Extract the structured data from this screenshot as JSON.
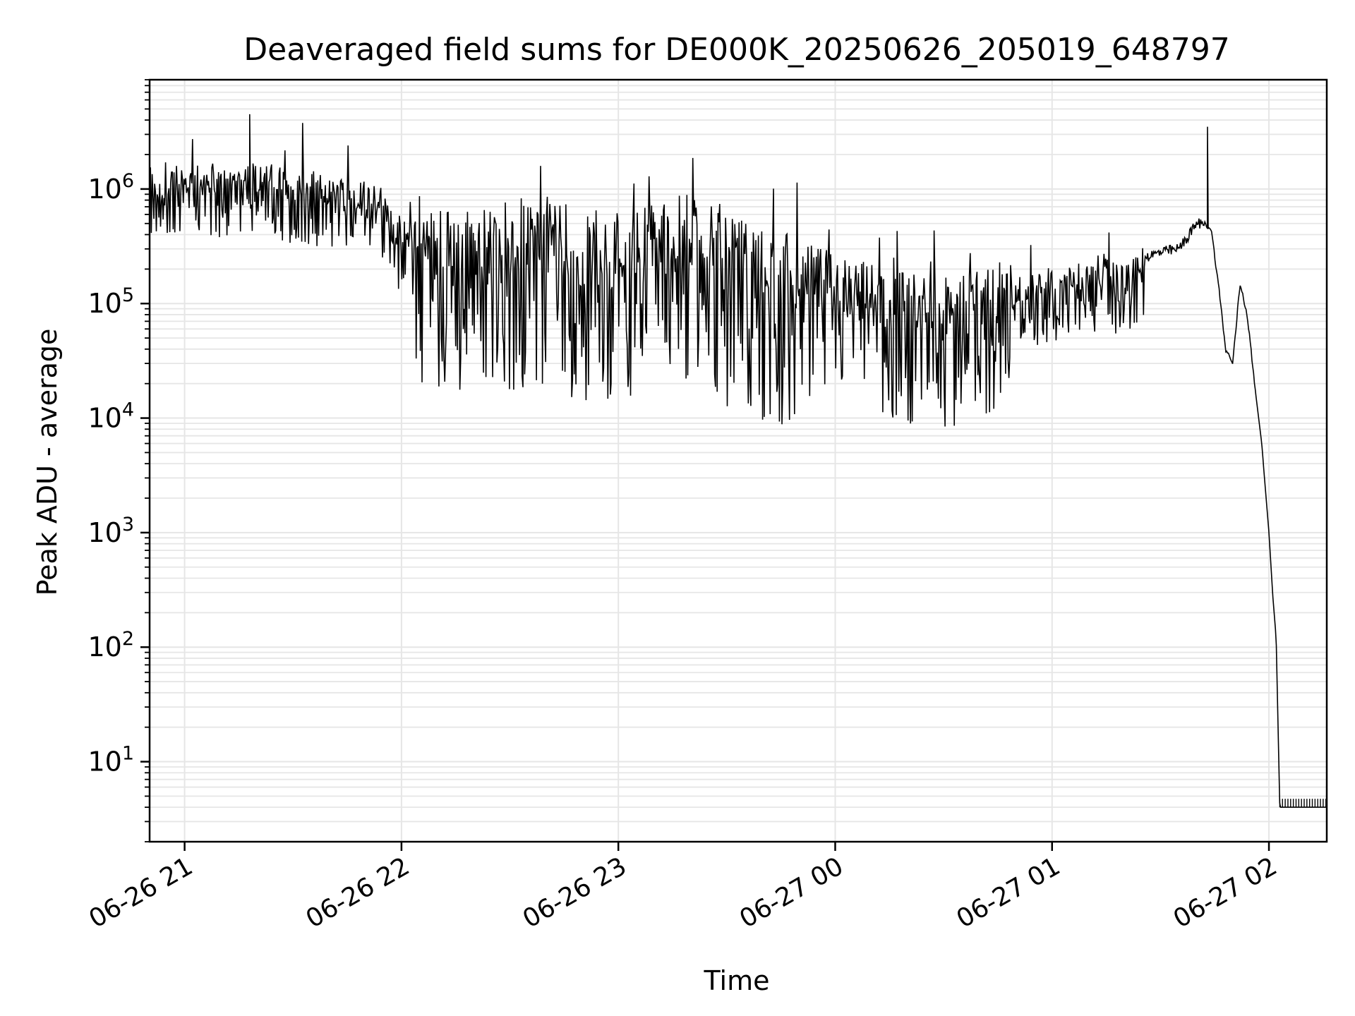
{
  "chart_data": {
    "type": "line",
    "title": "Deaveraged field sums for DE000K_20250626_205019_648797",
    "xlabel": "Time",
    "ylabel": "Peak ADU - average",
    "yscale": "log",
    "grid": true,
    "legend": "none",
    "line_color": "#000000",
    "grid_color": "#e6e6e6",
    "xlim": [
      "2025-06-26 20:50:19",
      "2025-06-27 02:16:00"
    ],
    "ylim": [
      2,
      9000000
    ],
    "x_ticks": [
      {
        "label": "06-26 21",
        "value": "2025-06-26 21:00"
      },
      {
        "label": "06-26 22",
        "value": "2025-06-26 22:00"
      },
      {
        "label": "06-26 23",
        "value": "2025-06-26 23:00"
      },
      {
        "label": "06-27 00",
        "value": "2025-06-27 00:00"
      },
      {
        "label": "06-27 01",
        "value": "2025-06-27 01:00"
      },
      {
        "label": "06-27 02",
        "value": "2025-06-27 02:00"
      }
    ],
    "y_ticks": [
      {
        "base": "10",
        "exp": "1",
        "value": 10
      },
      {
        "base": "10",
        "exp": "2",
        "value": 100
      },
      {
        "base": "10",
        "exp": "3",
        "value": 1000
      },
      {
        "base": "10",
        "exp": "4",
        "value": 10000
      },
      {
        "base": "10",
        "exp": "5",
        "value": 100000
      },
      {
        "base": "10",
        "exp": "6",
        "value": 1000000
      }
    ],
    "series": [
      {
        "x": [
          "2025-06-26 20:50:19",
          "2025-06-26 20:52",
          "2025-06-26 20:53",
          "2025-06-26 20:54",
          "2025-06-26 20:56",
          "2025-06-26 20:58",
          "2025-06-26 21:00",
          "2025-06-26 21:05",
          "2025-06-26 21:08",
          "2025-06-26 21:10",
          "2025-06-26 21:15",
          "2025-06-26 21:20",
          "2025-06-26 21:30",
          "2025-06-26 21:40",
          "2025-06-26 21:50",
          "2025-06-26 21:55",
          "2025-06-26 22:00",
          "2025-06-26 22:10",
          "2025-06-26 22:20",
          "2025-06-26 22:30",
          "2025-06-26 22:38",
          "2025-06-26 22:45",
          "2025-06-26 22:50",
          "2025-06-26 23:00",
          "2025-06-26 23:10",
          "2025-06-26 23:20",
          "2025-06-26 23:25",
          "2025-06-26 23:30",
          "2025-06-26 23:40",
          "2025-06-26 23:50",
          "2025-06-27 00:00",
          "2025-06-27 00:10",
          "2025-06-27 00:20",
          "2025-06-27 00:30",
          "2025-06-27 00:40",
          "2025-06-27 00:50",
          "2025-06-27 01:00",
          "2025-06-27 01:10",
          "2025-06-27 01:15",
          "2025-06-27 01:20",
          "2025-06-27 01:25",
          "2025-06-27 01:30",
          "2025-06-27 01:35",
          "2025-06-27 01:38",
          "2025-06-27 01:40",
          "2025-06-27 01:42",
          "2025-06-27 01:44",
          "2025-06-27 01:46",
          "2025-06-27 01:48",
          "2025-06-27 01:50",
          "2025-06-27 01:52",
          "2025-06-27 01:54",
          "2025-06-27 01:56",
          "2025-06-27 01:58",
          "2025-06-27 02:00",
          "2025-06-27 02:01",
          "2025-06-27 02:02",
          "2025-06-27 02:03",
          "2025-06-27 02:16"
        ],
        "y": [
          1500000,
          800000,
          1200000,
          700000,
          1000000,
          1300000,
          1100000,
          1200000,
          1300000,
          1100000,
          1200000,
          1300000,
          1100000,
          1000000,
          900000,
          800000,
          400000,
          300000,
          300000,
          350000,
          400000,
          350000,
          300000,
          300000,
          350000,
          400000,
          500000,
          250000,
          200000,
          180000,
          150000,
          120000,
          100000,
          90000,
          110000,
          130000,
          150000,
          180000,
          200000,
          150000,
          250000,
          280000,
          300000,
          400000,
          500000,
          500000,
          450000,
          150000,
          40000,
          30000,
          150000,
          80000,
          20000,
          6000,
          1000,
          300,
          120,
          4,
          4
        ]
      }
    ],
    "annotations": [
      {
        "type": "peak",
        "x": "2025-06-26 21:18",
        "y": 4500000
      },
      {
        "type": "peak",
        "x": "2025-06-27 01:43",
        "y": 3500000
      },
      {
        "type": "dip",
        "x": "2025-06-26 22:39",
        "y": 20000
      },
      {
        "type": "dip",
        "x": "2025-06-26 22:58",
        "y": 20000
      }
    ]
  }
}
